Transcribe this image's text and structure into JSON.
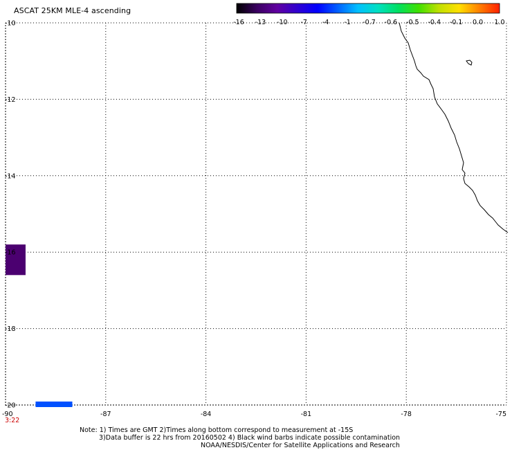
{
  "title": "ASCAT 25KM MLE-4 ascending",
  "colorbar": {
    "labels": [
      "-16",
      "-13",
      "-10",
      "-7",
      "-4",
      "-1",
      "-0.7",
      "-0.6",
      "-0.5",
      "-0.4",
      "-0.1",
      "0.0",
      "1.0"
    ],
    "colors": [
      "#000000",
      "#3a0060",
      "#6000a0",
      "#3000d0",
      "#0000ff",
      "#0060ff",
      "#00c0ff",
      "#00e0c0",
      "#00e060",
      "#40e000",
      "#c0e000",
      "#ffe000",
      "#ff8000",
      "#ff2000"
    ]
  },
  "map": {
    "lon_range": [
      -90,
      -75
    ],
    "lat_range": [
      -20,
      -10
    ],
    "lon_ticks": [
      "-90",
      "-87",
      "-84",
      "-81",
      "-78",
      "-75"
    ],
    "lat_ticks": [
      "-10",
      "-12",
      "-14",
      "-16",
      "-18",
      "-20"
    ],
    "swath_box": {
      "lon_min": -90,
      "lon_max": -89.4,
      "lat_min": -16.6,
      "lat_max": -15.8,
      "color": "#4b0070"
    },
    "time_bar": {
      "lon_min": -89.1,
      "lon_max": -88.0,
      "lat": -20.0,
      "color": "#0050ff"
    },
    "time_label": "3:22"
  },
  "notes": {
    "line1": "Note: 1) Times are GMT 2)Times along bottom correspond to measurement at -15S",
    "line2": "3)Data buffer is 22 hrs from 20160502 4) Black wind barbs indicate possible contamination",
    "line3": "NOAA/NESDIS/Center for Satellite Applications and Research"
  }
}
